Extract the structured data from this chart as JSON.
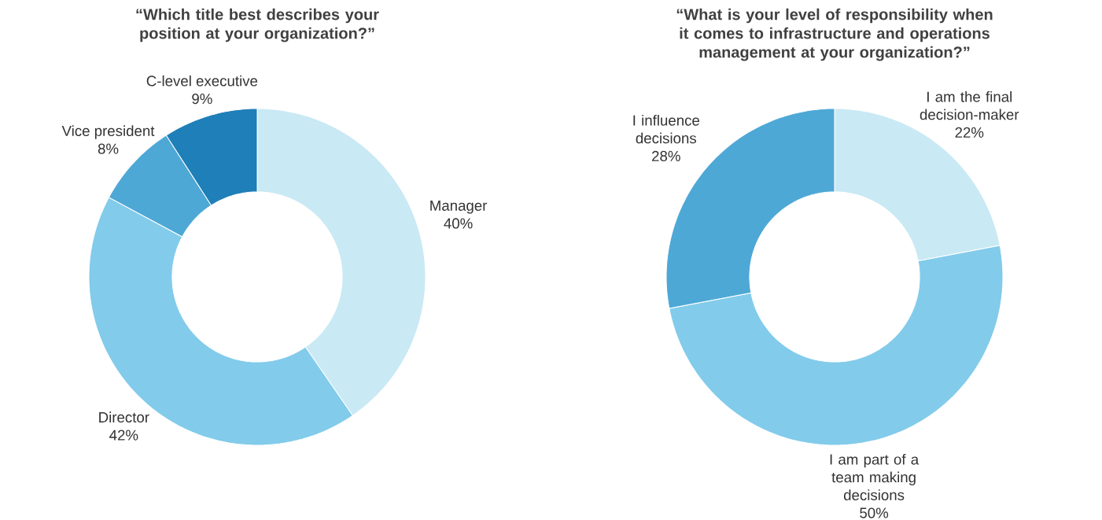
{
  "chart_data": [
    {
      "type": "donut",
      "title": "“Which title best describes your position at your organization?”",
      "categories": [
        "Manager",
        "Director",
        "Vice president",
        "C-level executive"
      ],
      "values": [
        40,
        42,
        8,
        9
      ],
      "value_labels": [
        "40%",
        "42%",
        "8%",
        "9%"
      ],
      "colors": [
        "#c9e9f4",
        "#82cbeb",
        "#4ea8d6",
        "#1f7fb8"
      ]
    },
    {
      "type": "donut",
      "title": "“What is your level of responsibility when it comes to infrastructure and operations management at your organization?”",
      "categories": [
        "I am the final decision-maker",
        "I am part of a team making decisions",
        "I influence decisions"
      ],
      "values": [
        22,
        50,
        28
      ],
      "value_labels": [
        "22%",
        "50%",
        "28%"
      ],
      "colors": [
        "#c9e9f4",
        "#82cbeb",
        "#4ea8d6"
      ]
    }
  ]
}
